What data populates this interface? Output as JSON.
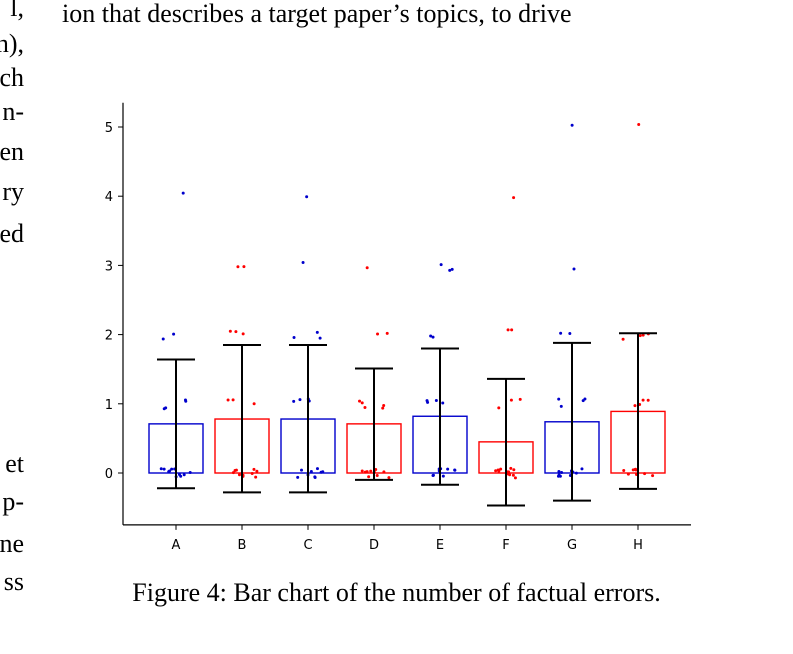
{
  "page": {
    "top_line": "ion that describes a target paper’s topics, to drive",
    "left_column": [
      "l,",
      "n),",
      "ch",
      "n-",
      "en",
      "ry",
      "ed",
      "et",
      "p-",
      "ne",
      "ss"
    ],
    "caption": "Figure 4: Bar chart of the number of factual errors."
  },
  "chart_data": {
    "type": "bar",
    "categories": [
      "A",
      "B",
      "C",
      "D",
      "E",
      "F",
      "G",
      "H"
    ],
    "values": [
      0.71,
      0.78,
      0.78,
      0.71,
      0.82,
      0.45,
      0.74,
      0.89
    ],
    "error_low": [
      -0.22,
      -0.28,
      -0.28,
      -0.1,
      -0.17,
      -0.47,
      -0.4,
      -0.23
    ],
    "error_high": [
      1.64,
      1.85,
      1.85,
      1.51,
      1.8,
      1.36,
      1.88,
      2.02
    ],
    "colors": [
      "#0000cc",
      "#ff0000",
      "#0000cc",
      "#ff0000",
      "#0000cc",
      "#ff0000",
      "#0000cc",
      "#ff0000"
    ],
    "points": [
      [
        4,
        2,
        2,
        1,
        1,
        1,
        1,
        0,
        0,
        0,
        0,
        0,
        0,
        0,
        0,
        0,
        0,
        0
      ],
      [
        3,
        3,
        2,
        2,
        2,
        1,
        1,
        1,
        0,
        0,
        0,
        0,
        0,
        0,
        0,
        0,
        0,
        0
      ],
      [
        4,
        3,
        2,
        2,
        2,
        1,
        1,
        1,
        1,
        0,
        0,
        0,
        0,
        0,
        0,
        0,
        0,
        0
      ],
      [
        3,
        2,
        2,
        1,
        1,
        1,
        1,
        1,
        0,
        0,
        0,
        0,
        0,
        0,
        0,
        0,
        0,
        0
      ],
      [
        3,
        3,
        3,
        2,
        2,
        1,
        1,
        1,
        1,
        0,
        0,
        0,
        0,
        0,
        0,
        0,
        0,
        0
      ],
      [
        4,
        2,
        2,
        1,
        1,
        1,
        0,
        0,
        0,
        0,
        0,
        0,
        0,
        0,
        0,
        0,
        0,
        0
      ],
      [
        5,
        3,
        2,
        2,
        1,
        1,
        1,
        1,
        0,
        0,
        0,
        0,
        0,
        0,
        0,
        0,
        0,
        0
      ],
      [
        5,
        2,
        2,
        2,
        2,
        1,
        1,
        1,
        1,
        0,
        0,
        0,
        0,
        0,
        0,
        0,
        0,
        0
      ]
    ],
    "yticks": [
      0,
      1,
      2,
      3,
      4,
      5
    ],
    "ylim": [
      -0.75,
      5.35
    ],
    "xlabel": "",
    "ylabel": "",
    "grid": false,
    "legend": "none"
  }
}
